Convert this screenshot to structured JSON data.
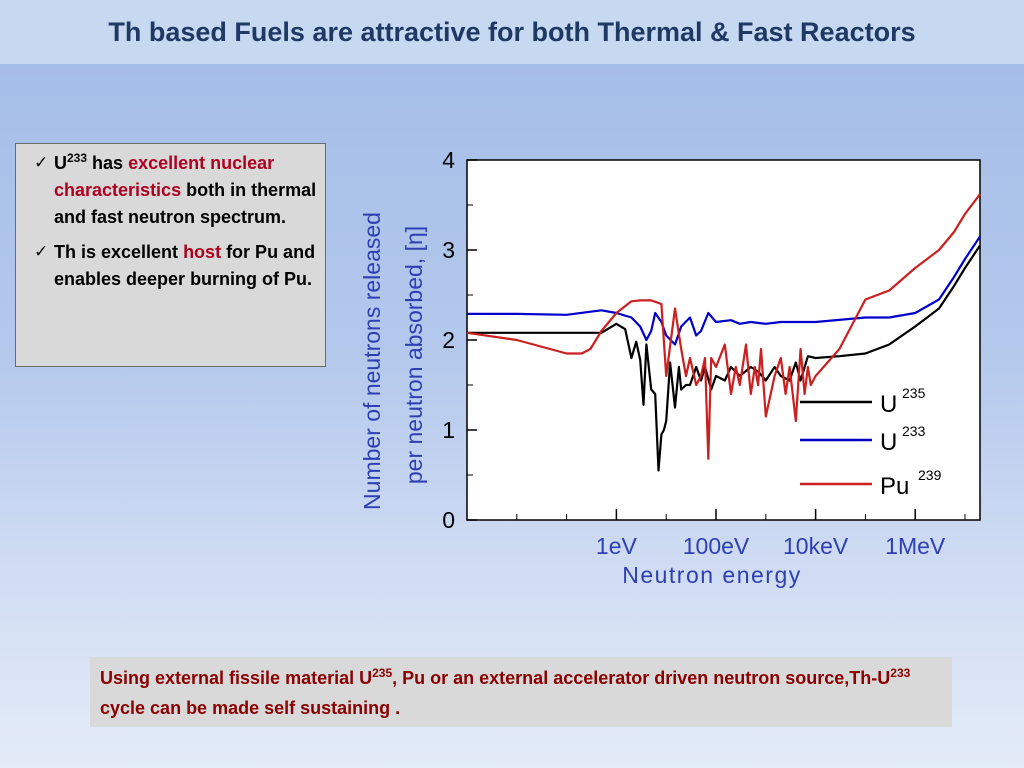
{
  "title": "Th based Fuels are attractive for both Thermal & Fast Reactors",
  "bullets": [
    {
      "check": "✓",
      "main": "U",
      "sup": "233",
      "mid": " has ",
      "highlight": "excellent nuclear characteristics",
      "rest": " both in thermal and fast neutron spectrum."
    },
    {
      "check": "✓",
      "main": "Th is excellent ",
      "highlight": "host",
      "rest": " for Pu and enables deeper burning of Pu."
    }
  ],
  "bottom_note": {
    "part1": "Using external fissile material U",
    "sup1": "235",
    "part2": ", Pu or an external accelerator driven neutron source,Th-U",
    "sup2": "233",
    "part3": " cycle can be made self sustaining ."
  },
  "colors": {
    "title": "#1f3864",
    "highlight": "#b00020",
    "note": "#8b0000",
    "axis_label": "#2e3fb4",
    "U235": "#000000",
    "U233": "#0000cc",
    "Pu239": "#cc1f1f"
  },
  "chart_data": {
    "type": "line",
    "ylabel_line1": "Number of neutrons released",
    "ylabel_line2": "per neutron absorbed, [η]",
    "xlabel": "Neutron energy",
    "x_scale": "log",
    "x_unit": "eV",
    "xlim": [
      0.001,
      20000000
    ],
    "ylim": [
      0,
      4
    ],
    "x_ticks": [
      {
        "value": 1,
        "label": "1eV"
      },
      {
        "value": 100,
        "label": "100eV"
      },
      {
        "value": 10000,
        "label": "10keV"
      },
      {
        "value": 1000000,
        "label": "1MeV"
      }
    ],
    "y_ticks": [
      {
        "value": 0,
        "label": "0"
      },
      {
        "value": 1,
        "label": "1"
      },
      {
        "value": 2,
        "label": "2"
      },
      {
        "value": 3,
        "label": "3"
      },
      {
        "value": 4,
        "label": "4"
      }
    ],
    "legend_position": "lower-right",
    "series": [
      {
        "name": "U",
        "sup": "235",
        "color": "#000000",
        "x": [
          0.001,
          0.01,
          0.1,
          0.5,
          1,
          1.5,
          2,
          2.5,
          3,
          3.5,
          4,
          5,
          6,
          7,
          8,
          9,
          10,
          12,
          15,
          18,
          20,
          25,
          30,
          40,
          50,
          60,
          80,
          100,
          150,
          200,
          300,
          500,
          700,
          1000,
          1500,
          2000,
          3000,
          4000,
          5000,
          7000,
          10000,
          30000,
          100000,
          300000,
          1000000,
          3000000,
          6000000,
          10000000,
          20000000
        ],
        "y": [
          2.08,
          2.08,
          2.08,
          2.08,
          2.18,
          2.12,
          1.8,
          1.98,
          1.78,
          1.28,
          1.95,
          1.45,
          1.4,
          0.55,
          0.95,
          1.0,
          1.1,
          1.75,
          1.25,
          1.7,
          1.45,
          1.5,
          1.5,
          1.7,
          1.55,
          1.7,
          1.45,
          1.6,
          1.55,
          1.7,
          1.6,
          1.7,
          1.65,
          1.55,
          1.7,
          1.6,
          1.55,
          1.75,
          1.55,
          1.82,
          1.8,
          1.82,
          1.85,
          1.95,
          2.15,
          2.35,
          2.6,
          2.8,
          3.05
        ]
      },
      {
        "name": "U",
        "sup": "233",
        "color": "#0000cc",
        "x": [
          0.001,
          0.01,
          0.1,
          0.5,
          1,
          2,
          3,
          4,
          5,
          6,
          8,
          10,
          15,
          20,
          30,
          40,
          50,
          70,
          100,
          200,
          300,
          500,
          1000,
          2000,
          5000,
          10000,
          100000,
          300000,
          1000000,
          3000000,
          6000000,
          10000000,
          20000000
        ],
        "y": [
          2.29,
          2.29,
          2.28,
          2.33,
          2.3,
          2.25,
          2.15,
          2.0,
          2.1,
          2.3,
          2.2,
          2.05,
          1.95,
          2.15,
          2.25,
          2.05,
          2.1,
          2.3,
          2.2,
          2.22,
          2.18,
          2.2,
          2.18,
          2.2,
          2.2,
          2.2,
          2.25,
          2.25,
          2.3,
          2.45,
          2.7,
          2.9,
          3.15
        ]
      },
      {
        "name": "Pu",
        "sup": "239",
        "color": "#cc1f1f",
        "x": [
          0.001,
          0.01,
          0.1,
          0.2,
          0.3,
          0.5,
          1,
          2,
          3,
          5,
          8,
          10,
          15,
          20,
          25,
          30,
          40,
          50,
          60,
          70,
          80,
          100,
          150,
          200,
          250,
          300,
          400,
          500,
          600,
          700,
          800,
          1000,
          1500,
          2000,
          2500,
          3000,
          4000,
          5000,
          6000,
          7000,
          8000,
          10000,
          30000,
          100000,
          300000,
          1000000,
          3000000,
          6000000,
          10000000,
          20000000
        ],
        "y": [
          2.08,
          2.0,
          1.85,
          1.85,
          1.9,
          2.1,
          2.3,
          2.43,
          2.44,
          2.44,
          2.4,
          1.6,
          2.35,
          1.9,
          1.6,
          1.8,
          1.5,
          1.6,
          1.8,
          0.68,
          1.8,
          1.7,
          1.95,
          1.4,
          1.7,
          1.5,
          1.95,
          1.4,
          1.7,
          1.5,
          1.9,
          1.15,
          1.6,
          1.8,
          1.4,
          1.7,
          1.1,
          1.9,
          1.4,
          1.7,
          1.5,
          1.6,
          1.9,
          2.45,
          2.55,
          2.8,
          3.0,
          3.2,
          3.4,
          3.62
        ]
      }
    ]
  }
}
